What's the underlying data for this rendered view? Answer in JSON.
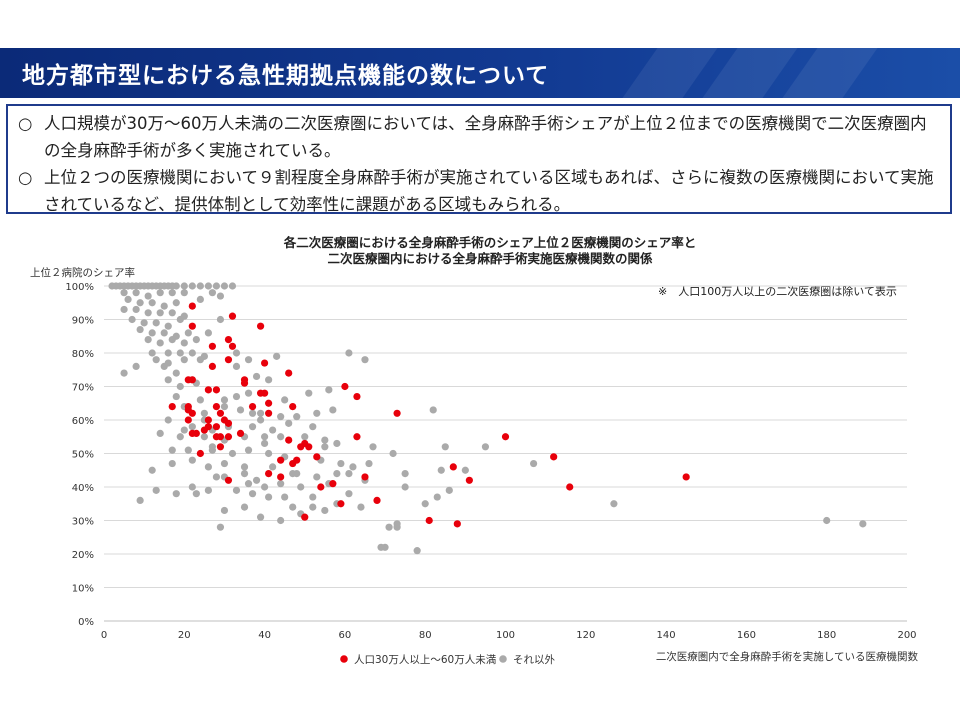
{
  "header": {
    "title": "地方都市型における急性期拠点機能の数について"
  },
  "bullets": [
    {
      "mark": "○",
      "text": "人口規模が30万～60万人未満の二次医療圏においては、全身麻酔手術シェアが上位２位までの医療機関で二次医療圏内の全身麻酔手術が多く実施されている。"
    },
    {
      "mark": "○",
      "text": "上位２つの医療機関において９割程度全身麻酔手術が実施されている区域もあれば、さらに複数の医療機関において実施されているなど、提供体制として効率性に課題がある区域もみられる。"
    }
  ],
  "chart_data": {
    "type": "scatter",
    "title_line1": "各二次医療圏における全身麻酔手術のシェア上位２医療機関のシェア率と",
    "title_line2": "二次医療圏内における全身麻酔手術実施医療機関数の関係",
    "ylabel": "上位２病院のシェア率",
    "xlabel": "二次医療圏内で全身麻酔手術を実施している医療機関数",
    "note": "※　人口100万人以上の二次医療圏は除いて表示",
    "xlim": [
      0,
      200
    ],
    "ylim": [
      0,
      100
    ],
    "x_ticks": [
      "0",
      "20",
      "40",
      "60",
      "80",
      "100",
      "120",
      "140",
      "160",
      "180",
      "200"
    ],
    "y_ticks": [
      "0%",
      "10%",
      "20%",
      "30%",
      "40%",
      "50%",
      "60%",
      "70%",
      "80%",
      "90%",
      "100%"
    ],
    "colors": {
      "red": "#e8000b",
      "gray": "#aaaaaa",
      "grid": "#d9d9d9"
    },
    "series": [
      {
        "name": "人口30万人以上～60万人未満",
        "color": "#e8000b",
        "points": [
          [
            22,
            94
          ],
          [
            22,
            88
          ],
          [
            32,
            91
          ],
          [
            39,
            88
          ],
          [
            31,
            84
          ],
          [
            32,
            82
          ],
          [
            27,
            82
          ],
          [
            31,
            78
          ],
          [
            40,
            77
          ],
          [
            27,
            76
          ],
          [
            21,
            72
          ],
          [
            22,
            72
          ],
          [
            35,
            72
          ],
          [
            26,
            69
          ],
          [
            40,
            68
          ],
          [
            39,
            68
          ],
          [
            35,
            71
          ],
          [
            28,
            69
          ],
          [
            46,
            74
          ],
          [
            60,
            70
          ],
          [
            63,
            67
          ],
          [
            37,
            64
          ],
          [
            41,
            65
          ],
          [
            41,
            62
          ],
          [
            47,
            64
          ],
          [
            73,
            62
          ],
          [
            17,
            64
          ],
          [
            21,
            64
          ],
          [
            21,
            63
          ],
          [
            22,
            62
          ],
          [
            21,
            60
          ],
          [
            26,
            60
          ],
          [
            28,
            64
          ],
          [
            29,
            62
          ],
          [
            30,
            60
          ],
          [
            31,
            59
          ],
          [
            26,
            58
          ],
          [
            28,
            58
          ],
          [
            25,
            57
          ],
          [
            29,
            55
          ],
          [
            31,
            55
          ],
          [
            23,
            56
          ],
          [
            34,
            56
          ],
          [
            28,
            55
          ],
          [
            29,
            52
          ],
          [
            22,
            56
          ],
          [
            24,
            50
          ],
          [
            46,
            54
          ],
          [
            50,
            53
          ],
          [
            51,
            52
          ],
          [
            49,
            52
          ],
          [
            53,
            49
          ],
          [
            44,
            48
          ],
          [
            48,
            48
          ],
          [
            47,
            47
          ],
          [
            63,
            55
          ],
          [
            100,
            55
          ],
          [
            112,
            49
          ],
          [
            87,
            46
          ],
          [
            91,
            42
          ],
          [
            65,
            43
          ],
          [
            41,
            44
          ],
          [
            44,
            43
          ],
          [
            31,
            42
          ],
          [
            57,
            41
          ],
          [
            54,
            40
          ],
          [
            116,
            40
          ],
          [
            145,
            43
          ],
          [
            68,
            36
          ],
          [
            59,
            35
          ],
          [
            50,
            31
          ],
          [
            81,
            30
          ],
          [
            88,
            29
          ]
        ]
      },
      {
        "name": "それ以外",
        "color": "#aaaaaa",
        "points": [
          [
            2,
            100
          ],
          [
            3,
            100
          ],
          [
            4,
            100
          ],
          [
            5,
            100
          ],
          [
            6,
            100
          ],
          [
            7,
            100
          ],
          [
            8,
            100
          ],
          [
            9,
            100
          ],
          [
            10,
            100
          ],
          [
            11,
            100
          ],
          [
            12,
            100
          ],
          [
            13,
            100
          ],
          [
            14,
            100
          ],
          [
            15,
            100
          ],
          [
            16,
            100
          ],
          [
            17,
            100
          ],
          [
            18,
            100
          ],
          [
            20,
            100
          ],
          [
            22,
            100
          ],
          [
            24,
            100
          ],
          [
            26,
            100
          ],
          [
            28,
            100
          ],
          [
            30,
            100
          ],
          [
            32,
            100
          ],
          [
            5,
            98
          ],
          [
            8,
            98
          ],
          [
            11,
            97
          ],
          [
            14,
            98
          ],
          [
            17,
            98
          ],
          [
            20,
            98
          ],
          [
            6,
            96
          ],
          [
            9,
            95
          ],
          [
            12,
            95
          ],
          [
            15,
            94
          ],
          [
            18,
            95
          ],
          [
            24,
            96
          ],
          [
            27,
            98
          ],
          [
            29,
            97
          ],
          [
            5,
            93
          ],
          [
            8,
            93
          ],
          [
            11,
            92
          ],
          [
            14,
            92
          ],
          [
            17,
            92
          ],
          [
            20,
            91
          ],
          [
            7,
            90
          ],
          [
            10,
            89
          ],
          [
            13,
            89
          ],
          [
            16,
            88
          ],
          [
            19,
            90
          ],
          [
            29,
            90
          ],
          [
            9,
            87
          ],
          [
            12,
            86
          ],
          [
            15,
            86
          ],
          [
            18,
            85
          ],
          [
            21,
            86
          ],
          [
            11,
            84
          ],
          [
            14,
            83
          ],
          [
            17,
            84
          ],
          [
            20,
            83
          ],
          [
            23,
            84
          ],
          [
            26,
            86
          ],
          [
            33,
            80
          ],
          [
            12,
            80
          ],
          [
            16,
            80
          ],
          [
            19,
            80
          ],
          [
            22,
            80
          ],
          [
            25,
            79
          ],
          [
            13,
            78
          ],
          [
            16,
            77
          ],
          [
            20,
            78
          ],
          [
            24,
            78
          ],
          [
            8,
            76
          ],
          [
            15,
            76
          ],
          [
            5,
            74
          ],
          [
            18,
            74
          ],
          [
            22,
            72
          ],
          [
            33,
            76
          ],
          [
            36,
            78
          ],
          [
            43,
            79
          ],
          [
            61,
            80
          ],
          [
            65,
            78
          ],
          [
            16,
            72
          ],
          [
            19,
            70
          ],
          [
            23,
            71
          ],
          [
            38,
            73
          ],
          [
            41,
            72
          ],
          [
            18,
            67
          ],
          [
            24,
            66
          ],
          [
            30,
            66
          ],
          [
            33,
            67
          ],
          [
            36,
            68
          ],
          [
            45,
            66
          ],
          [
            51,
            68
          ],
          [
            56,
            69
          ],
          [
            20,
            64
          ],
          [
            25,
            62
          ],
          [
            30,
            64
          ],
          [
            34,
            63
          ],
          [
            39,
            62
          ],
          [
            44,
            61
          ],
          [
            48,
            61
          ],
          [
            53,
            62
          ],
          [
            57,
            63
          ],
          [
            16,
            60
          ],
          [
            22,
            58
          ],
          [
            27,
            57
          ],
          [
            31,
            58
          ],
          [
            37,
            58
          ],
          [
            42,
            57
          ],
          [
            46,
            59
          ],
          [
            52,
            58
          ],
          [
            39,
            60
          ],
          [
            14,
            56
          ],
          [
            19,
            55
          ],
          [
            25,
            55
          ],
          [
            30,
            54
          ],
          [
            35,
            55
          ],
          [
            40,
            55
          ],
          [
            44,
            55
          ],
          [
            50,
            55
          ],
          [
            55,
            54
          ],
          [
            58,
            53
          ],
          [
            36,
            51
          ],
          [
            21,
            51
          ],
          [
            27,
            51
          ],
          [
            32,
            50
          ],
          [
            41,
            50
          ],
          [
            45,
            49
          ],
          [
            54,
            48
          ],
          [
            59,
            47
          ],
          [
            67,
            52
          ],
          [
            72,
            50
          ],
          [
            12,
            45
          ],
          [
            17,
            47
          ],
          [
            22,
            48
          ],
          [
            26,
            46
          ],
          [
            30,
            47
          ],
          [
            35,
            46
          ],
          [
            42,
            46
          ],
          [
            48,
            44
          ],
          [
            53,
            43
          ],
          [
            58,
            44
          ],
          [
            62,
            46
          ],
          [
            66,
            47
          ],
          [
            84,
            45
          ],
          [
            90,
            45
          ],
          [
            107,
            47
          ],
          [
            28,
            43
          ],
          [
            36,
            41
          ],
          [
            40,
            40
          ],
          [
            44,
            41
          ],
          [
            49,
            40
          ],
          [
            56,
            41
          ],
          [
            65,
            42
          ],
          [
            75,
            40
          ],
          [
            13,
            39
          ],
          [
            18,
            38
          ],
          [
            22,
            40
          ],
          [
            26,
            39
          ],
          [
            33,
            39
          ],
          [
            37,
            38
          ],
          [
            41,
            37
          ],
          [
            45,
            37
          ],
          [
            52,
            37
          ],
          [
            9,
            36
          ],
          [
            23,
            38
          ],
          [
            61,
            38
          ],
          [
            83,
            37
          ],
          [
            86,
            39
          ],
          [
            127,
            35
          ],
          [
            30,
            33
          ],
          [
            35,
            34
          ],
          [
            47,
            34
          ],
          [
            52,
            34
          ],
          [
            58,
            35
          ],
          [
            64,
            34
          ],
          [
            80,
            35
          ],
          [
            39,
            31
          ],
          [
            44,
            30
          ],
          [
            49,
            32
          ],
          [
            55,
            33
          ],
          [
            29,
            28
          ],
          [
            73,
            29
          ],
          [
            73,
            28
          ],
          [
            70,
            22
          ],
          [
            78,
            21
          ],
          [
            69,
            22
          ],
          [
            180,
            30
          ],
          [
            189,
            29
          ],
          [
            71,
            28
          ],
          [
            61,
            44
          ],
          [
            75,
            44
          ],
          [
            82,
            63
          ],
          [
            85,
            52
          ],
          [
            95,
            52
          ],
          [
            37,
            62
          ],
          [
            40,
            53
          ],
          [
            47,
            44
          ],
          [
            55,
            52
          ],
          [
            35,
            44
          ],
          [
            30,
            43
          ],
          [
            27,
            52
          ],
          [
            25,
            60
          ],
          [
            20,
            57
          ],
          [
            17,
            51
          ],
          [
            38,
            42
          ]
        ]
      }
    ]
  }
}
